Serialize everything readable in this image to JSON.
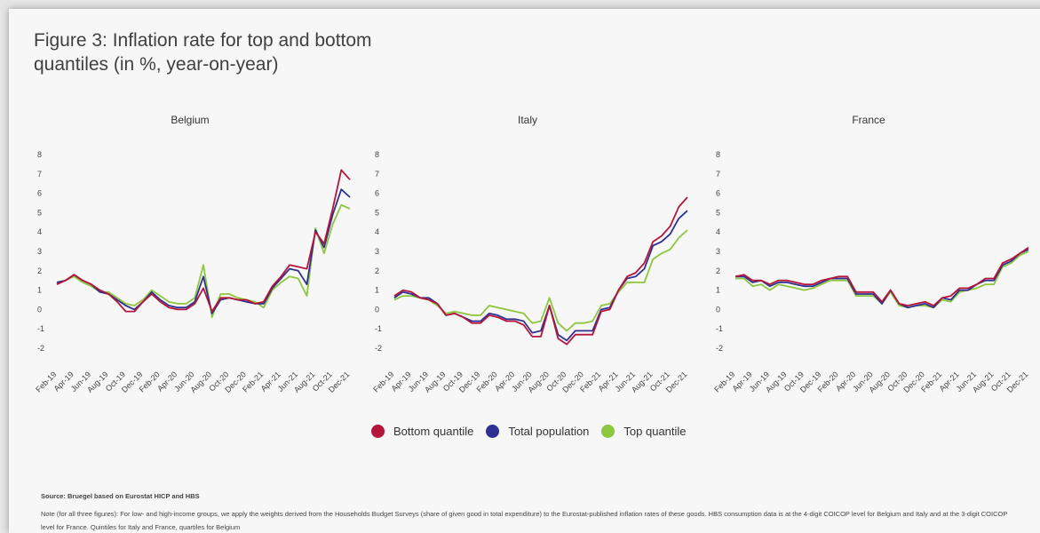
{
  "figure": {
    "title": "Figure 3: Inflation rate for top and bottom quantiles (in %, year-on-year)",
    "source": "Source: Bruegel based on Eurostat HICP and HBS",
    "note": "Note (for all three figures): For low- and high-income groups, we apply the weights derived from the Households Budget Surveys (share of given good in total expenditure) to the Eurostat-published inflation rates of these goods. HBS consumption data is at the 4-digit COICOP level for Belgium and Italy and at the 3-digit COICOP level for France. Quintiles for Italy and France, quartiles for Belgium"
  },
  "legend": [
    {
      "label": "Bottom quantile",
      "color": "#b5153a"
    },
    {
      "label": "Total population",
      "color": "#2e3192"
    },
    {
      "label": "Top quantile",
      "color": "#8dc63f"
    }
  ],
  "chart_data": [
    {
      "type": "line",
      "title": "Belgium",
      "xlabel": "",
      "ylabel": "",
      "ylim": [
        -2,
        8
      ],
      "yticks": [
        "8",
        "7",
        "6",
        "5",
        "4",
        "3",
        "2",
        "1",
        "0",
        "-1",
        "-2"
      ],
      "xtick_labels": [
        "Feb-19",
        "Apr-19",
        "Jun-19",
        "Aug-19",
        "Oct-19",
        "Dec-19",
        "Feb-20",
        "Apr-20",
        "Jun-20",
        "Aug-20",
        "Oct-20",
        "Dec-20",
        "Feb-21",
        "Apr-21",
        "Jun-21",
        "Aug-21",
        "Oct-21",
        "Dec-21"
      ],
      "x": [
        "Feb-19",
        "Mar-19",
        "Apr-19",
        "May-19",
        "Jun-19",
        "Jul-19",
        "Aug-19",
        "Sep-19",
        "Oct-19",
        "Nov-19",
        "Dec-19",
        "Jan-20",
        "Feb-20",
        "Mar-20",
        "Apr-20",
        "May-20",
        "Jun-20",
        "Jul-20",
        "Aug-20",
        "Sep-20",
        "Oct-20",
        "Nov-20",
        "Dec-20",
        "Jan-21",
        "Feb-21",
        "Mar-21",
        "Apr-21",
        "May-21",
        "Jun-21",
        "Jul-21",
        "Aug-21",
        "Sep-21",
        "Oct-21",
        "Nov-21",
        "Dec-21"
      ],
      "series": [
        {
          "name": "Bottom quantile",
          "color": "#b5153a",
          "values": [
            1.3,
            1.5,
            1.8,
            1.5,
            1.3,
            1.0,
            0.8,
            0.4,
            -0.1,
            -0.1,
            0.4,
            0.8,
            0.4,
            0.1,
            0.0,
            0.0,
            0.3,
            1.1,
            -0.1,
            0.6,
            0.6,
            0.5,
            0.5,
            0.3,
            0.4,
            1.2,
            1.7,
            2.3,
            2.2,
            2.1,
            4.0,
            3.4,
            5.2,
            7.2,
            6.7
          ]
        },
        {
          "name": "Total population",
          "color": "#2e3192",
          "values": [
            1.4,
            1.5,
            1.8,
            1.5,
            1.3,
            0.9,
            0.8,
            0.5,
            0.2,
            0.0,
            0.4,
            0.9,
            0.5,
            0.2,
            0.1,
            0.1,
            0.4,
            1.7,
            -0.2,
            0.5,
            0.6,
            0.5,
            0.4,
            0.3,
            0.3,
            1.1,
            1.6,
            2.1,
            2.0,
            1.3,
            4.1,
            3.2,
            4.9,
            6.2,
            5.8
          ]
        },
        {
          "name": "Top quantile",
          "color": "#8dc63f",
          "values": [
            1.3,
            1.5,
            1.7,
            1.4,
            1.2,
            0.9,
            0.9,
            0.6,
            0.3,
            0.2,
            0.5,
            1.0,
            0.7,
            0.4,
            0.3,
            0.3,
            0.6,
            2.3,
            -0.4,
            0.8,
            0.8,
            0.6,
            0.5,
            0.4,
            0.1,
            1.0,
            1.4,
            1.7,
            1.6,
            0.7,
            4.2,
            2.9,
            4.4,
            5.4,
            5.2
          ]
        }
      ]
    },
    {
      "type": "line",
      "title": "Italy",
      "xlabel": "",
      "ylabel": "",
      "ylim": [
        -2,
        8
      ],
      "yticks": [
        "8",
        "7",
        "6",
        "5",
        "4",
        "3",
        "2",
        "1",
        "0",
        "-1",
        "-2"
      ],
      "xtick_labels": [
        "Feb-19",
        "Apr-19",
        "Jun-19",
        "Aug-19",
        "Oct-19",
        "Dec-19",
        "Feb-20",
        "Apr-20",
        "Jun-20",
        "Aug-20",
        "Oct-20",
        "Dec-20",
        "Feb-21",
        "Apr-21",
        "Jun-21",
        "Aug-21",
        "Oct-21",
        "Dec-21"
      ],
      "x": [
        "Feb-19",
        "Mar-19",
        "Apr-19",
        "May-19",
        "Jun-19",
        "Jul-19",
        "Aug-19",
        "Sep-19",
        "Oct-19",
        "Nov-19",
        "Dec-19",
        "Jan-20",
        "Feb-20",
        "Mar-20",
        "Apr-20",
        "May-20",
        "Jun-20",
        "Jul-20",
        "Aug-20",
        "Sep-20",
        "Oct-20",
        "Nov-20",
        "Dec-20",
        "Jan-21",
        "Feb-21",
        "Mar-21",
        "Apr-21",
        "May-21",
        "Jun-21",
        "Jul-21",
        "Aug-21",
        "Sep-21",
        "Oct-21",
        "Nov-21",
        "Dec-21"
      ],
      "series": [
        {
          "name": "Bottom quantile",
          "color": "#b5153a",
          "values": [
            0.7,
            1.0,
            0.9,
            0.6,
            0.5,
            0.3,
            -0.3,
            -0.2,
            -0.4,
            -0.7,
            -0.7,
            -0.3,
            -0.4,
            -0.6,
            -0.6,
            -0.8,
            -1.4,
            -1.4,
            0.2,
            -1.5,
            -1.8,
            -1.3,
            -1.3,
            -1.3,
            -0.1,
            0.0,
            1.0,
            1.7,
            1.9,
            2.4,
            3.5,
            3.8,
            4.3,
            5.3,
            5.8
          ]
        },
        {
          "name": "Total population",
          "color": "#2e3192",
          "values": [
            0.6,
            0.9,
            0.8,
            0.6,
            0.6,
            0.3,
            -0.3,
            -0.2,
            -0.4,
            -0.6,
            -0.6,
            -0.2,
            -0.3,
            -0.5,
            -0.5,
            -0.6,
            -1.2,
            -1.1,
            0.2,
            -1.3,
            -1.6,
            -1.1,
            -1.1,
            -1.1,
            0.0,
            0.1,
            1.0,
            1.6,
            1.7,
            2.1,
            3.3,
            3.5,
            3.9,
            4.7,
            5.1
          ]
        },
        {
          "name": "Top quantile",
          "color": "#8dc63f",
          "values": [
            0.5,
            0.7,
            0.7,
            0.6,
            0.5,
            0.2,
            -0.2,
            -0.1,
            -0.2,
            -0.3,
            -0.3,
            0.2,
            0.1,
            0.0,
            -0.1,
            -0.2,
            -0.7,
            -0.6,
            0.6,
            -0.7,
            -1.1,
            -0.7,
            -0.7,
            -0.6,
            0.2,
            0.3,
            0.9,
            1.4,
            1.4,
            1.4,
            2.6,
            2.9,
            3.1,
            3.7,
            4.1
          ]
        }
      ]
    },
    {
      "type": "line",
      "title": "France",
      "xlabel": "",
      "ylabel": "",
      "ylim": [
        -2,
        8
      ],
      "yticks": [
        "8",
        "7",
        "6",
        "5",
        "4",
        "3",
        "2",
        "1",
        "0",
        "-1",
        "-2"
      ],
      "xtick_labels": [
        "Feb-19",
        "Apr-19",
        "Jun-19",
        "Aug-19",
        "Oct-19",
        "Dec-19",
        "Feb-20",
        "Apr-20",
        "Jun-20",
        "Aug-20",
        "Oct-20",
        "Dec-20",
        "Feb-21",
        "Apr-21",
        "Jun-21",
        "Aug-21",
        "Oct-21",
        "Dec-21"
      ],
      "x": [
        "Feb-19",
        "Mar-19",
        "Apr-19",
        "May-19",
        "Jun-19",
        "Jul-19",
        "Aug-19",
        "Sep-19",
        "Oct-19",
        "Nov-19",
        "Dec-19",
        "Jan-20",
        "Feb-20",
        "Mar-20",
        "Apr-20",
        "May-20",
        "Jun-20",
        "Jul-20",
        "Aug-20",
        "Sep-20",
        "Oct-20",
        "Nov-20",
        "Dec-20",
        "Jan-21",
        "Feb-21",
        "Mar-21",
        "Apr-21",
        "May-21",
        "Jun-21",
        "Jul-21",
        "Aug-21",
        "Sep-21",
        "Oct-21",
        "Nov-21",
        "Dec-21"
      ],
      "series": [
        {
          "name": "Bottom quantile",
          "color": "#b5153a",
          "values": [
            1.7,
            1.8,
            1.5,
            1.5,
            1.3,
            1.5,
            1.5,
            1.4,
            1.3,
            1.3,
            1.5,
            1.6,
            1.7,
            1.7,
            0.9,
            0.9,
            0.9,
            0.4,
            1.0,
            0.3,
            0.2,
            0.3,
            0.4,
            0.2,
            0.6,
            0.7,
            1.1,
            1.1,
            1.3,
            1.6,
            1.6,
            2.4,
            2.6,
            2.9,
            3.2
          ]
        },
        {
          "name": "Total population",
          "color": "#2e3192",
          "values": [
            1.7,
            1.7,
            1.4,
            1.5,
            1.2,
            1.4,
            1.4,
            1.3,
            1.2,
            1.2,
            1.4,
            1.6,
            1.6,
            1.6,
            0.8,
            0.8,
            0.8,
            0.3,
            1.0,
            0.3,
            0.1,
            0.2,
            0.3,
            0.1,
            0.6,
            0.5,
            1.0,
            1.0,
            1.3,
            1.5,
            1.5,
            2.3,
            2.5,
            2.9,
            3.1
          ]
        },
        {
          "name": "Top quantile",
          "color": "#8dc63f",
          "values": [
            1.6,
            1.6,
            1.2,
            1.3,
            1.0,
            1.3,
            1.2,
            1.1,
            1.0,
            1.1,
            1.3,
            1.5,
            1.5,
            1.5,
            0.7,
            0.7,
            0.7,
            0.3,
            0.9,
            0.2,
            0.1,
            0.2,
            0.2,
            0.1,
            0.5,
            0.4,
            0.9,
            1.0,
            1.1,
            1.3,
            1.3,
            2.2,
            2.4,
            2.8,
            3.0
          ]
        }
      ]
    }
  ]
}
